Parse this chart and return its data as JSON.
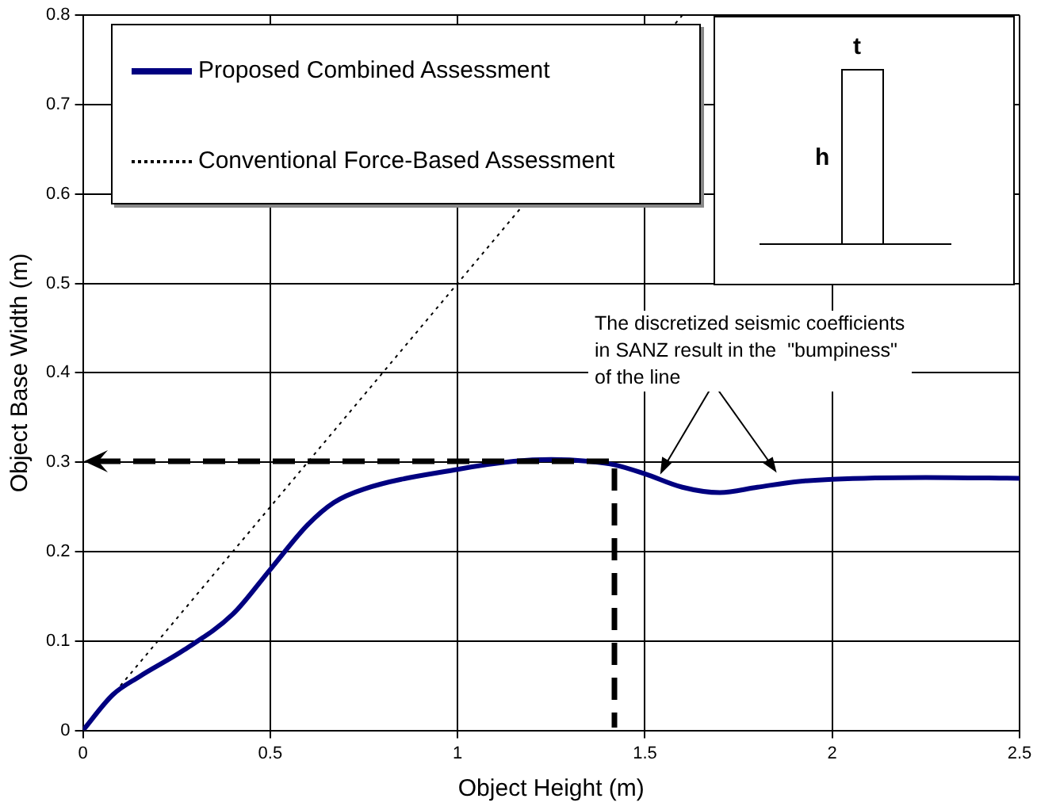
{
  "chart_data": {
    "type": "line",
    "xlabel": "Object Height (m)",
    "ylabel": "Object Base Width (m)",
    "xlim": [
      0,
      2.5
    ],
    "xticks": [
      0,
      0.5,
      1,
      1.5,
      2,
      2.5
    ],
    "ylim": [
      0,
      0.8
    ],
    "yticks": [
      0,
      0.1,
      0.2,
      0.3,
      0.4,
      0.5,
      0.6,
      0.7,
      0.8
    ],
    "grid": true,
    "legend": "top left",
    "marker": "none",
    "series": [
      {
        "name": "Proposed Combined Assessment",
        "color": "#000080",
        "line_style": "solid",
        "x": [
          0,
          0.08,
          0.15,
          0.27,
          0.4,
          0.5,
          0.6,
          0.67,
          0.75,
          1.0,
          1.15,
          1.25,
          1.35,
          1.42,
          1.5,
          1.6,
          1.7,
          1.8,
          1.9,
          2.0,
          2.25,
          2.5
        ],
        "values": [
          0,
          0.04,
          0.06,
          0.09,
          0.13,
          0.18,
          0.23,
          0.255,
          0.27,
          0.292,
          0.301,
          0.303,
          0.301,
          0.297,
          0.287,
          0.272,
          0.266,
          0.272,
          0.278,
          0.281,
          0.283,
          0.282
        ]
      },
      {
        "name": "Conventional Force-Based Assessment",
        "color": "#000000",
        "line_style": "dotted",
        "x": [
          0.1,
          1.6
        ],
        "values": [
          0.05,
          0.8
        ]
      }
    ],
    "annotations": [
      "The discretized seismic coefficients\nin SANZ result in the  \"bumpiness\"\nof the line",
      "t",
      "h"
    ]
  }
}
